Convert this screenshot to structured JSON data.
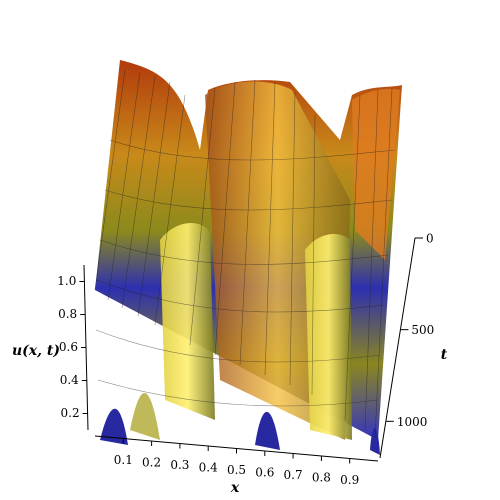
{
  "chart_data": {
    "type": "surface3d",
    "xlabel": "x",
    "ylabel": "t",
    "zlabel": "u(x, t)",
    "xlim": [
      0,
      1
    ],
    "xticks": [
      0.1,
      0.2,
      0.3,
      0.4,
      0.5,
      0.6,
      0.7,
      0.8,
      0.9
    ],
    "ylim": [
      0,
      1200
    ],
    "yticks": [
      0,
      500,
      1000
    ],
    "zlim": [
      0.1,
      1.1
    ],
    "zticks": [
      0.2,
      0.4,
      0.6,
      0.8,
      {
        "value": 1,
        "label": "1.0"
      }
    ]
  }
}
